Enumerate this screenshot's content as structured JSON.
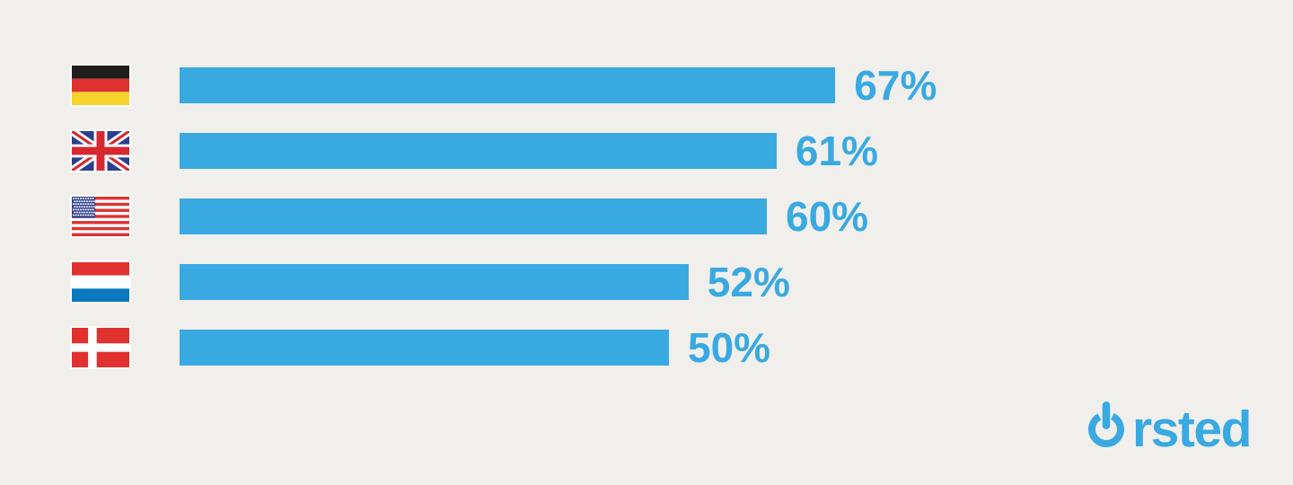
{
  "page": {
    "background": "#f0efeb",
    "accent": "#39a9e1"
  },
  "chart_data": {
    "type": "bar",
    "orientation": "horizontal",
    "title": "",
    "xlabel": "",
    "ylabel": "",
    "categories": [
      "Germany",
      "United Kingdom",
      "United States",
      "Netherlands",
      "Denmark"
    ],
    "values": [
      67,
      61,
      60,
      52,
      50
    ],
    "value_labels": [
      "67%",
      "61%",
      "60%",
      "52%",
      "50%"
    ],
    "unit": "%",
    "xlim": [
      0,
      100
    ],
    "bar_color": "#39a9e1",
    "value_label_color": "#39a9e1",
    "grid": false,
    "legend": "none",
    "category_icons": [
      "flag-germany-icon",
      "flag-uk-icon",
      "flag-usa-icon",
      "flag-netherlands-icon",
      "flag-denmark-icon"
    ]
  },
  "flag_colors": {
    "germany": {
      "black": "#1f1e1c",
      "red": "#e03131",
      "gold": "#f6d32d"
    },
    "uk": {
      "field": "#2b3f90",
      "cross": "#d7282f",
      "fimbriation": "#ffffff"
    },
    "usa": {
      "canton": "#30418f",
      "stripe": "#e03131",
      "white": "#ffffff"
    },
    "netherlands": {
      "red": "#e03131",
      "white": "#ffffff",
      "blue": "#0b79bd"
    },
    "denmark": {
      "field": "#e0312e",
      "cross": "#ffffff"
    }
  },
  "logo": {
    "brand": "Ørsted",
    "wordmark_text": "rsted",
    "symbol": "power-button-o-icon",
    "color": "#39a9e1"
  }
}
